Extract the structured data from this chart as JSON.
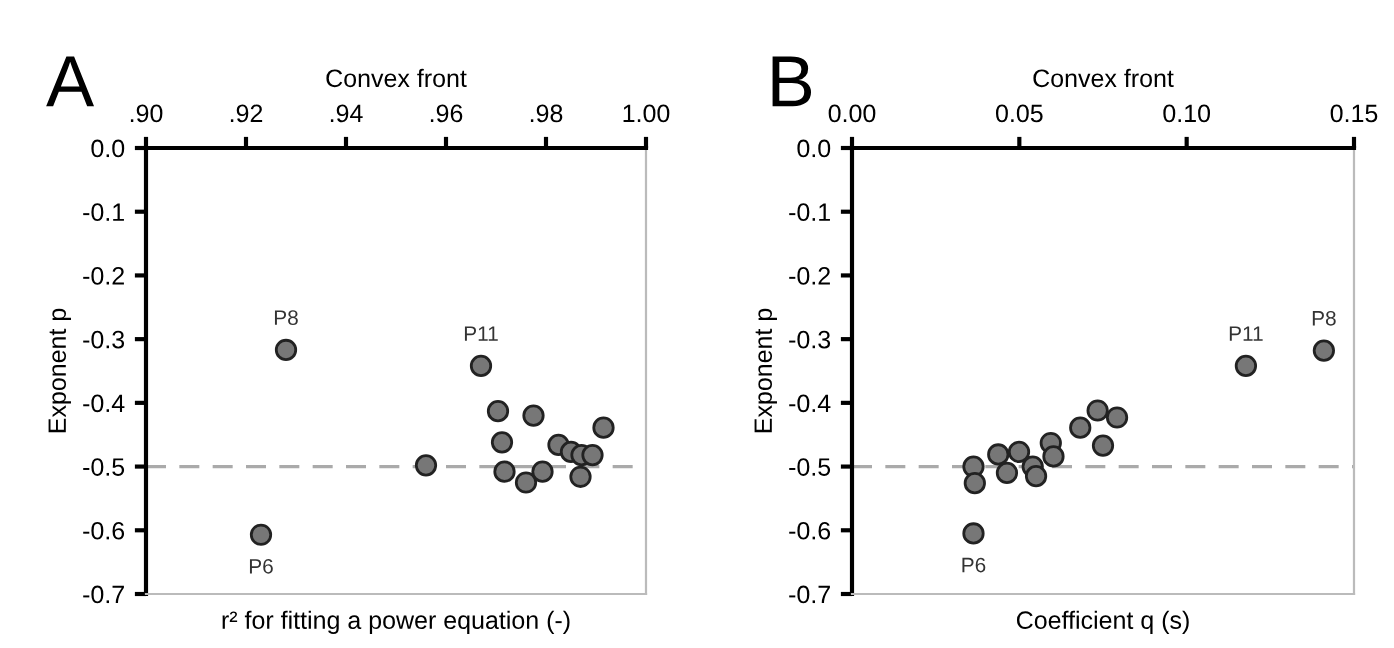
{
  "chart_data": [
    {
      "type": "scatter",
      "title": "Convex front",
      "xlabel": "r² for fitting a power equation (-)",
      "ylabel": "Exponent p",
      "annotations": [
        "A",
        {
          "text": "P8",
          "x": 0.928,
          "y": -0.317
        },
        {
          "text": "P6",
          "x": 0.923,
          "y": -0.607
        },
        {
          "text": "P11",
          "x": 0.967,
          "y": -0.342
        }
      ],
      "series": [
        {
          "color": "#777777",
          "x": [
            0.928,
            0.923,
            0.956,
            0.967,
            0.9704,
            0.9712,
            0.9717,
            0.976,
            0.9775,
            0.9793,
            0.9825,
            0.985,
            0.9871,
            0.9869,
            0.9893,
            0.9915
          ],
          "values": [
            -0.317,
            -0.607,
            -0.498,
            -0.342,
            -0.413,
            -0.462,
            -0.508,
            -0.525,
            -0.42,
            -0.508,
            -0.466,
            -0.477,
            -0.482,
            -0.516,
            -0.482,
            -0.439
          ]
        }
      ],
      "xlim": [
        0.9,
        1.0
      ],
      "xticks": [
        {
          "value": 0.9,
          "label": ".90"
        },
        {
          "value": 0.92,
          "label": ".92"
        },
        {
          "value": 0.94,
          "label": ".94"
        },
        {
          "value": 0.96,
          "label": ".96"
        },
        {
          "value": 0.98,
          "label": ".98"
        },
        {
          "value": 1.0,
          "label": "1.00"
        }
      ],
      "ylim": [
        -0.7,
        0.0
      ],
      "yticks": [
        {
          "value": 0,
          "label": "0.0"
        },
        -0.1,
        -0.2,
        -0.3,
        -0.4,
        -0.5,
        -0.6,
        -0.7
      ],
      "ref_lines": [
        {
          "axis": "y",
          "value": -0.5,
          "color": "#aaaaaa",
          "line_style": "dashed"
        }
      ],
      "marker": "circle",
      "grid": false,
      "legend": false
    },
    {
      "type": "scatter",
      "title": "Convex front",
      "xlabel": "Coefficient q (s)",
      "ylabel": "Exponent p",
      "annotations": [
        "B",
        {
          "text": "P6",
          "x": 0.0363,
          "y": -0.605
        },
        {
          "text": "P11",
          "x": 0.1177,
          "y": -0.342
        },
        {
          "text": "P8",
          "x": 0.141,
          "y": -0.318
        }
      ],
      "series": [
        {
          "color": "#777777",
          "x": [
            0.0363,
            0.0363,
            0.0367,
            0.0437,
            0.0463,
            0.0499,
            0.054,
            0.055,
            0.0594,
            0.0602,
            0.0682,
            0.0734,
            0.075,
            0.0792,
            0.1177,
            0.141
          ],
          "values": [
            -0.605,
            -0.5,
            -0.526,
            -0.481,
            -0.51,
            -0.477,
            -0.5,
            -0.515,
            -0.463,
            -0.484,
            -0.439,
            -0.412,
            -0.467,
            -0.423,
            -0.342,
            -0.318
          ]
        }
      ],
      "xlim": [
        0.0,
        0.15
      ],
      "xticks": [
        {
          "value": 0.0,
          "label": "0.00"
        },
        {
          "value": 0.05,
          "label": "0.05"
        },
        {
          "value": 0.1,
          "label": "0.10"
        },
        {
          "value": 0.15,
          "label": "0.15"
        }
      ],
      "ylim": [
        -0.7,
        0.0
      ],
      "yticks": [
        {
          "value": 0,
          "label": "0.0"
        },
        -0.1,
        -0.2,
        -0.3,
        -0.4,
        -0.5,
        -0.6,
        -0.7
      ],
      "ref_lines": [
        {
          "axis": "y",
          "value": -0.5,
          "color": "#aaaaaa",
          "line_style": "dashed"
        }
      ],
      "marker": "circle",
      "grid": false,
      "legend": false
    }
  ]
}
